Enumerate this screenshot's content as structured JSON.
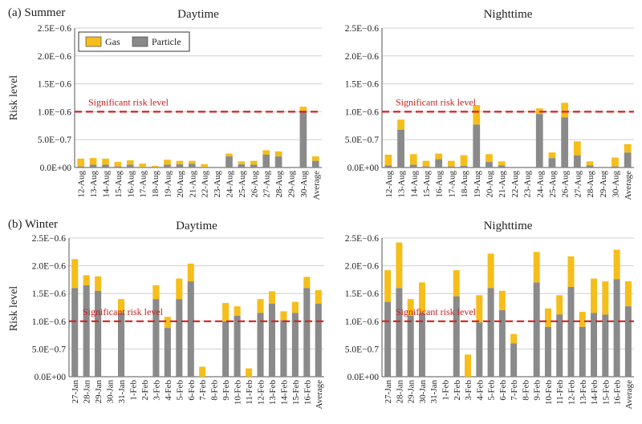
{
  "colors": {
    "gas": "#f5be1a",
    "particle": "#8a8a8a",
    "significant": "#d42020"
  },
  "legend": {
    "gas": "Gas",
    "particle": "Particle"
  },
  "ylabel": "Risk level",
  "significant_label": "Significant risk level",
  "ytick_labels": [
    "0.0E+00",
    "5.0E−0.7",
    "1.0E−0.6",
    "1.5E−0.6",
    "2.0E−0.6",
    "2.5E−0.6"
  ],
  "panels": {
    "summer": {
      "label": "(a) Summer"
    },
    "winter": {
      "label": "(b) Winter"
    }
  },
  "chart_data": [
    {
      "id": "summer_day",
      "type": "bar",
      "stacked": true,
      "title": "Daytime",
      "season": "(a) Summer",
      "ylabel": "Risk level",
      "ylim": [
        0,
        2.5e-06
      ],
      "significant_level": 1e-06,
      "categories": [
        "12-Aug",
        "13-Aug",
        "14-Aug",
        "15-Aug",
        "16-Aug",
        "17-Aug",
        "18-Aug",
        "19-Aug",
        "20-Aug",
        "21-Aug",
        "22-Aug",
        "23-Aug",
        "24-Aug",
        "25-Aug",
        "26-Aug",
        "27-Aug",
        "28-Aug",
        "29-Aug",
        "30-Aug",
        "Average"
      ],
      "series": [
        {
          "name": "Particle",
          "values": [
            2e-08,
            5e-08,
            5e-08,
            2e-08,
            5e-08,
            1e-08,
            1e-08,
            5e-08,
            6e-08,
            7e-08,
            1e-08,
            0,
            2e-07,
            6e-08,
            5e-08,
            2.3e-07,
            2e-07,
            0,
            1e-06,
            1.2e-07
          ]
        },
        {
          "name": "Gas",
          "values": [
            1.4e-07,
            1.2e-07,
            1.1e-07,
            8e-08,
            8e-08,
            6e-08,
            2e-08,
            9e-08,
            6e-08,
            5e-08,
            5e-08,
            0,
            5e-08,
            5e-08,
            7e-08,
            8e-08,
            9e-08,
            0,
            9e-08,
            8e-08
          ]
        }
      ]
    },
    {
      "id": "summer_night",
      "type": "bar",
      "stacked": true,
      "title": "Nighttime",
      "season": "(a) Summer",
      "ylabel": "Risk level",
      "ylim": [
        0,
        2.5e-06
      ],
      "significant_level": 1e-06,
      "categories": [
        "12-Aug",
        "13-Aug",
        "14-Aug",
        "15-Aug",
        "16-Aug",
        "17-Aug",
        "18-Aug",
        "19-Aug",
        "20-Aug",
        "21-Aug",
        "22-Aug",
        "23-Aug",
        "24-Aug",
        "25-Aug",
        "26-Aug",
        "27-Aug",
        "28-Aug",
        "29-Aug",
        "30-Aug",
        "Average"
      ],
      "series": [
        {
          "name": "Particle",
          "values": [
            4e-08,
            6.8e-07,
            5e-08,
            2e-08,
            1.5e-07,
            2e-08,
            3e-08,
            7.7e-07,
            1e-07,
            4e-08,
            0,
            0,
            9.6e-07,
            1.7e-07,
            9e-07,
            2.2e-07,
            4e-08,
            0,
            2e-08,
            2.7e-07
          ]
        },
        {
          "name": "Gas",
          "values": [
            1.9e-07,
            1.8e-07,
            1.9e-07,
            1e-07,
            1e-07,
            1e-07,
            1.9e-07,
            3.5e-07,
            1.4e-07,
            7e-08,
            0,
            0,
            1e-07,
            1e-07,
            2.6e-07,
            2.5e-07,
            7e-08,
            0,
            1.6e-07,
            1.5e-07
          ]
        }
      ]
    },
    {
      "id": "winter_day",
      "type": "bar",
      "stacked": true,
      "title": "Daytime",
      "season": "(b) Winter",
      "ylabel": "Risk level",
      "ylim": [
        0,
        2.5e-06
      ],
      "significant_level": 1e-06,
      "categories": [
        "27-Jan",
        "28-Jan",
        "29-Jan",
        "30-Jan",
        "31-Jan",
        "1-Feb",
        "2-Feb",
        "3-Feb",
        "4-Feb",
        "5-Feb",
        "6-Feb",
        "7-Feb",
        "8-Feb",
        "9-Feb",
        "10-Feb",
        "11-Feb",
        "12-Feb",
        "13-Feb",
        "14-Feb",
        "15-Feb",
        "16-Feb",
        "Average"
      ],
      "series": [
        {
          "name": "Particle",
          "values": [
            1.6e-06,
            1.65e-06,
            1.55e-06,
            0,
            1.15e-06,
            0,
            0,
            1.4e-06,
            8.8e-07,
            1.4e-06,
            1.72e-06,
            0,
            0,
            1e-06,
            1.1e-06,
            0,
            1.15e-06,
            1.32e-06,
            1.02e-06,
            1.15e-06,
            1.6e-06,
            1.32e-06
          ]
        },
        {
          "name": "Gas",
          "values": [
            5.2e-07,
            1.8e-07,
            2.6e-07,
            0,
            2.5e-07,
            0,
            0,
            2.5e-07,
            2e-07,
            3.7e-07,
            3.2e-07,
            1.8e-07,
            0,
            3.3e-07,
            1.7e-07,
            1.5e-07,
            2.5e-07,
            2.2e-07,
            1.6e-07,
            2e-07,
            2e-07,
            2.4e-07
          ]
        }
      ]
    },
    {
      "id": "winter_night",
      "type": "bar",
      "stacked": true,
      "title": "Nighttime",
      "season": "(b) Winter",
      "ylabel": "Risk level",
      "ylim": [
        0,
        2.5e-06
      ],
      "significant_level": 1e-06,
      "categories": [
        "27-Jan",
        "28-Jan",
        "29-Jan",
        "30-Jan",
        "31-Jan",
        "1-Feb",
        "2-Feb",
        "3-Feb",
        "4-Feb",
        "5-Feb",
        "6-Feb",
        "7-Feb",
        "8-Feb",
        "9-Feb",
        "10-Feb",
        "11-Feb",
        "12-Feb",
        "13-Feb",
        "14-Feb",
        "15-Feb",
        "16-Feb",
        "Average"
      ],
      "series": [
        {
          "name": "Particle",
          "values": [
            1.35e-06,
            1.6e-06,
            1.1e-06,
            1.15e-06,
            0,
            0,
            1.45e-06,
            0,
            9.8e-07,
            1.6e-06,
            1.2e-06,
            6e-07,
            0,
            1.7e-06,
            9e-07,
            1.12e-06,
            1.62e-06,
            9e-07,
            1.15e-06,
            1.12e-06,
            1.76e-06,
            1.27e-06
          ]
        },
        {
          "name": "Gas",
          "values": [
            5.7e-07,
            8.2e-07,
            3e-07,
            5.5e-07,
            0,
            0,
            4.7e-07,
            4e-07,
            4.9e-07,
            6.2e-07,
            3.5e-07,
            1.7e-07,
            0,
            5.5e-07,
            3.3e-07,
            3.5e-07,
            5.5e-07,
            2.7e-07,
            6.2e-07,
            6e-07,
            5.3e-07,
            4.5e-07
          ]
        }
      ]
    }
  ]
}
